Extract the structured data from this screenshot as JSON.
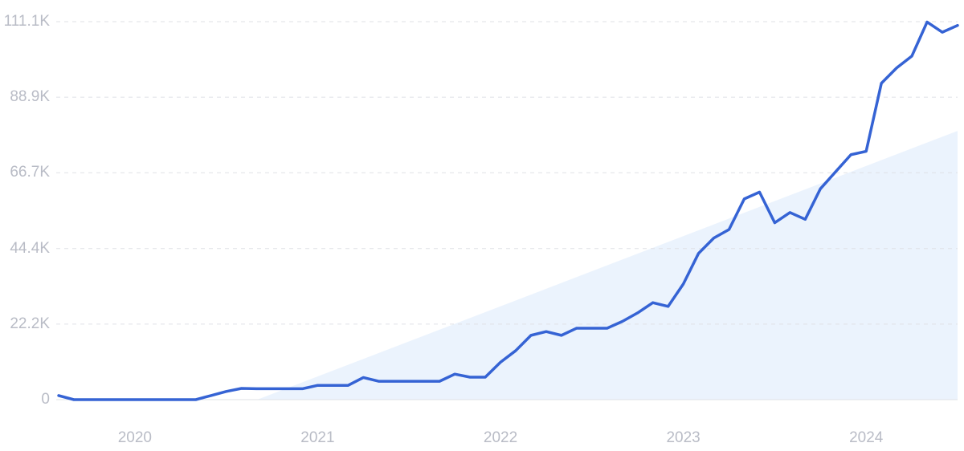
{
  "chart_data": {
    "type": "line",
    "x": [
      2019.5833,
      2019.6667,
      2019.75,
      2019.8333,
      2019.9167,
      2020.0,
      2020.0833,
      2020.1667,
      2020.25,
      2020.3333,
      2020.4167,
      2020.5,
      2020.5833,
      2020.6667,
      2020.75,
      2020.8333,
      2020.9167,
      2021.0,
      2021.0833,
      2021.1667,
      2021.25,
      2021.3333,
      2021.4167,
      2021.5,
      2021.5833,
      2021.6667,
      2021.75,
      2021.8333,
      2021.9167,
      2022.0,
      2022.0833,
      2022.1667,
      2022.25,
      2022.3333,
      2022.4167,
      2022.5,
      2022.5833,
      2022.6667,
      2022.75,
      2022.8333,
      2022.9167,
      2023.0,
      2023.0833,
      2023.1667,
      2023.25,
      2023.3333,
      2023.4167,
      2023.5,
      2023.5833,
      2023.6667,
      2023.75,
      2023.8333,
      2023.9167,
      2024.0,
      2024.0833,
      2024.1667,
      2024.25,
      2024.3333,
      2024.4167,
      2024.5
    ],
    "series": [
      {
        "color": "#3563d4",
        "values": [
          1200,
          0,
          0,
          0,
          0,
          0,
          0,
          0,
          0,
          0,
          1200,
          2400,
          3300,
          3200,
          3200,
          3200,
          3200,
          4200,
          4200,
          4200,
          6500,
          5400,
          5400,
          5400,
          5400,
          5400,
          7500,
          6600,
          6600,
          11000,
          14400,
          18900,
          20000,
          18900,
          21000,
          21000,
          21000,
          23000,
          25500,
          28500,
          27400,
          34000,
          43000,
          47500,
          50000,
          59000,
          61000,
          52000,
          55000,
          53000,
          62000,
          67000,
          72000,
          73000,
          93000,
          97500,
          101000,
          111000,
          108000,
          110000
        ]
      }
    ],
    "trend": {
      "color": "#e8f1fd",
      "x": [
        2020.67,
        2024.5
      ],
      "values": [
        0,
        79000
      ]
    },
    "xlim": [
      2019.5833,
      2024.5
    ],
    "xticks": [
      2020,
      2021,
      2022,
      2023,
      2024
    ],
    "ylim": [
      0,
      111100
    ],
    "yticks": [
      0,
      {
        "value": 22200,
        "label": "22.2K"
      },
      {
        "value": 44400,
        "label": "44.4K"
      },
      {
        "value": 66700,
        "label": "66.7K"
      },
      {
        "value": 88900,
        "label": "88.9K"
      },
      {
        "value": 111100,
        "label": "111.1K"
      }
    ],
    "grid": true
  }
}
